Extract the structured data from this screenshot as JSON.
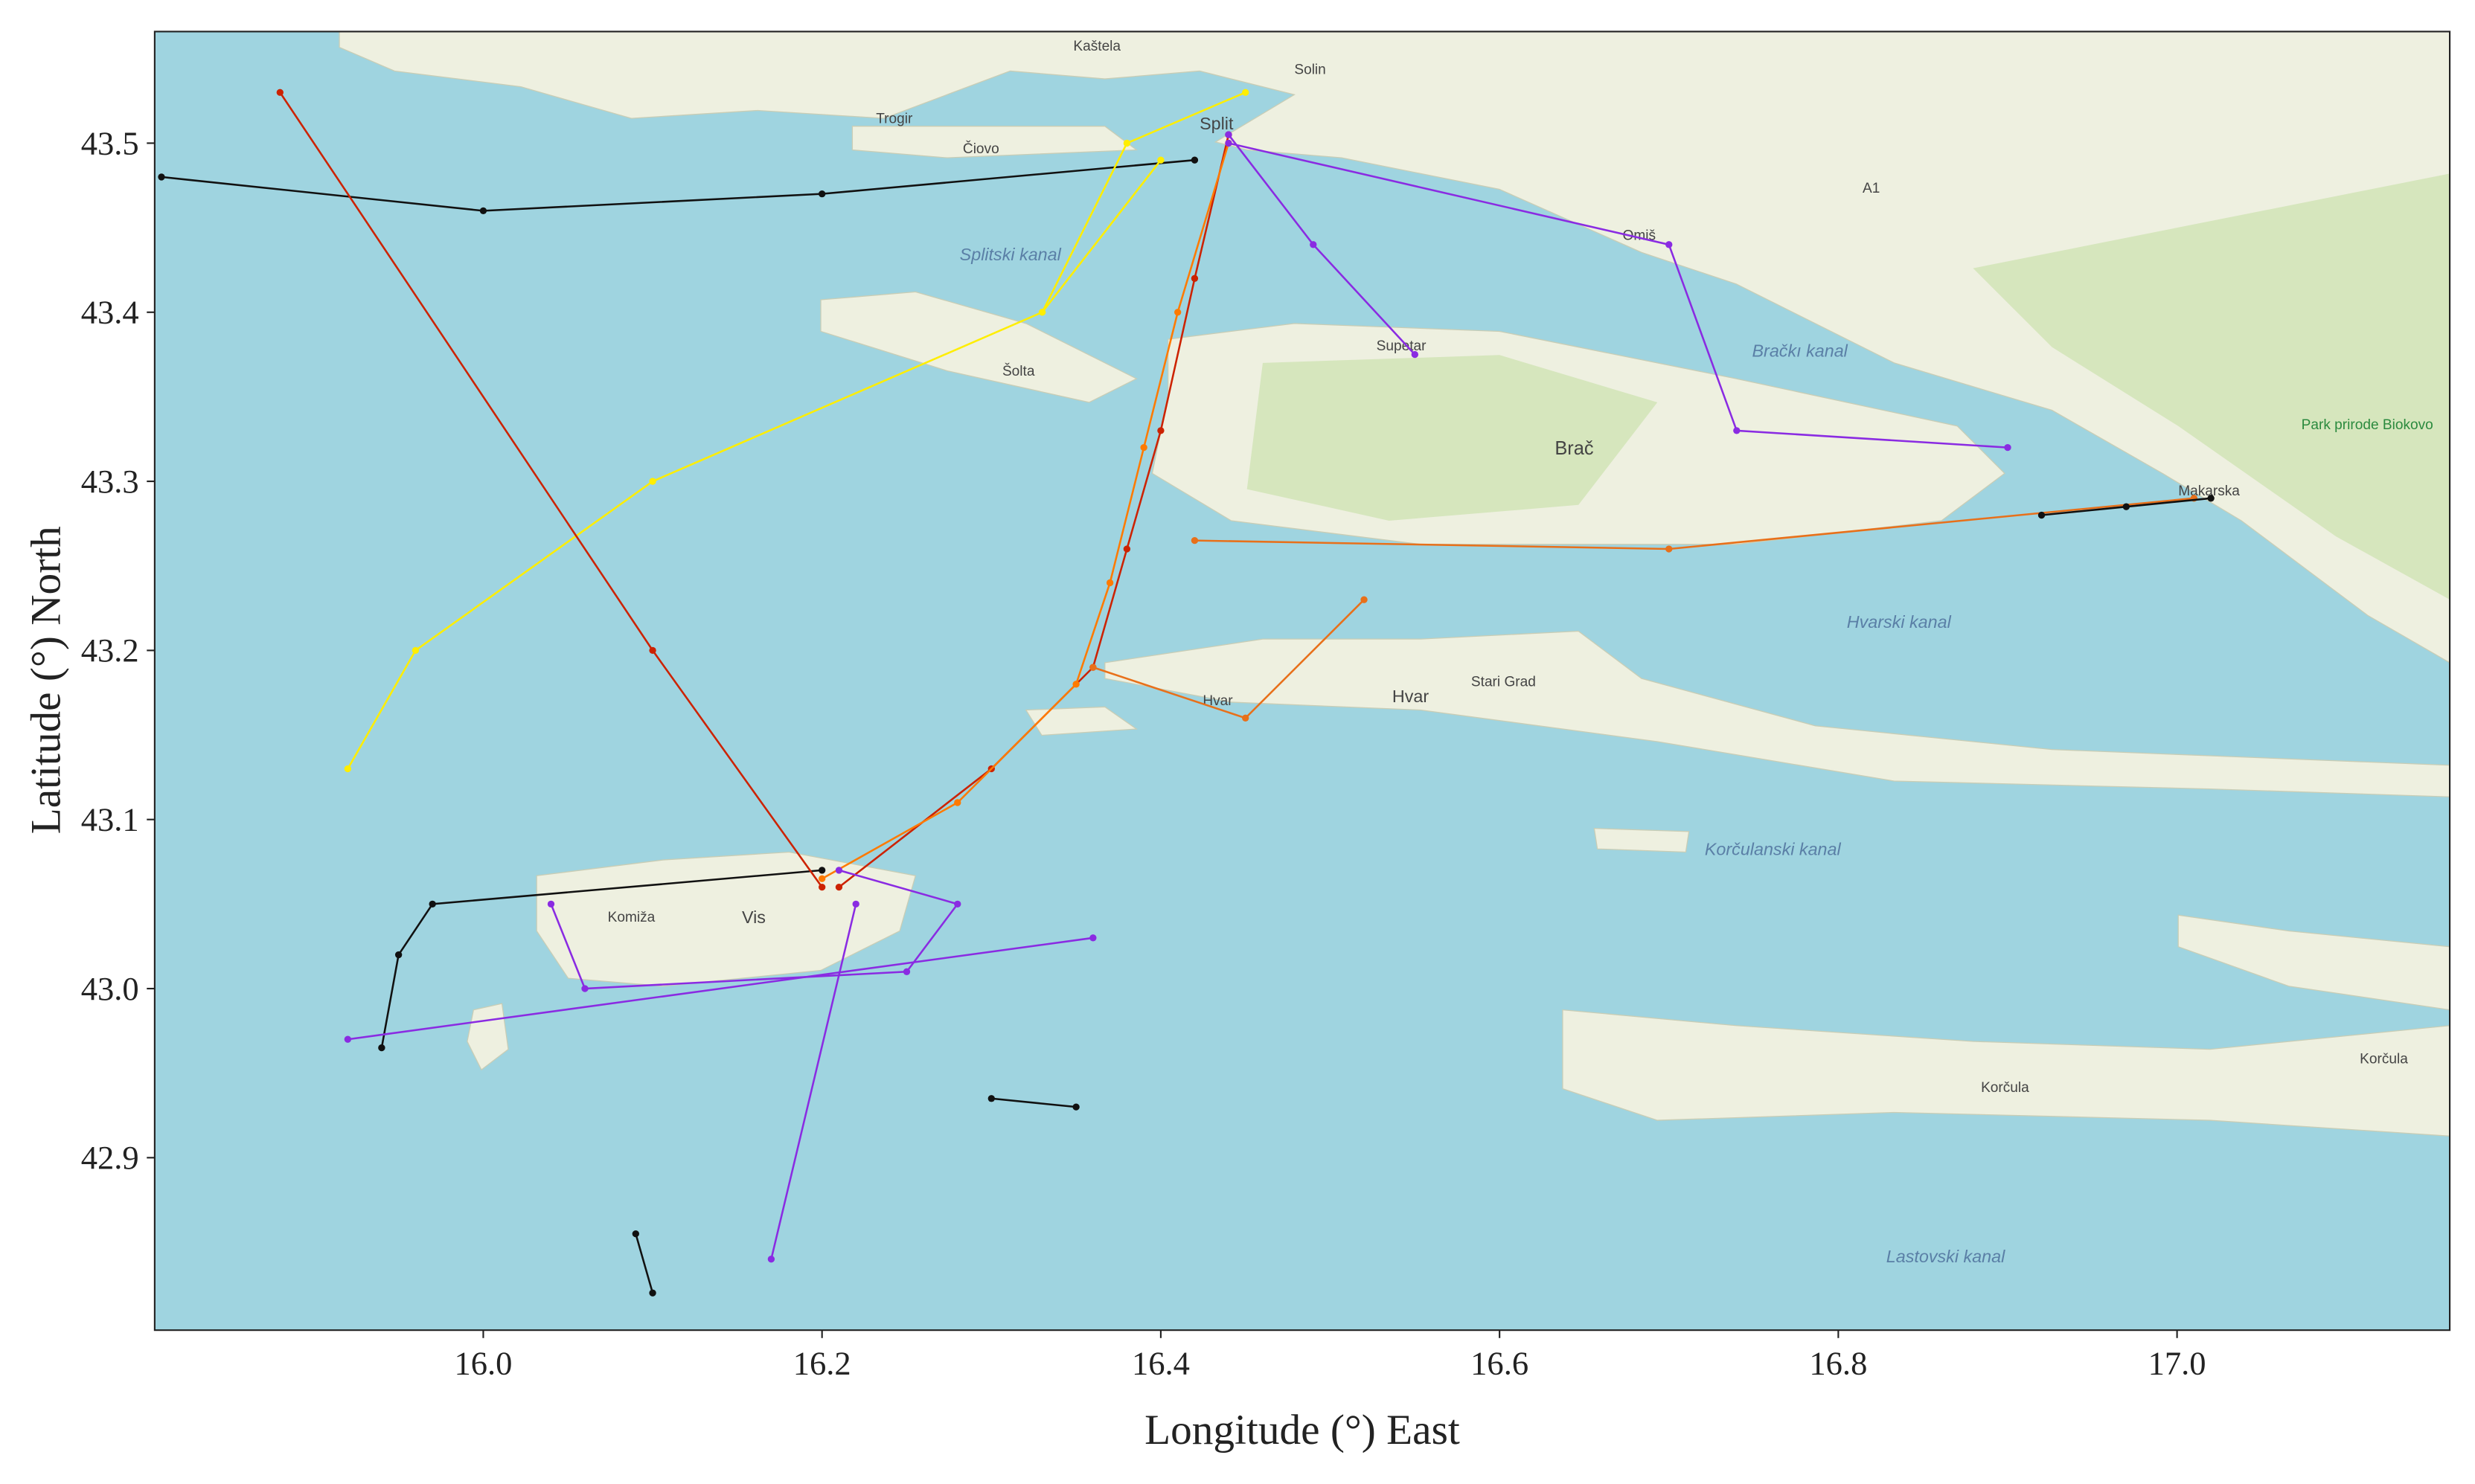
{
  "chart_data": {
    "type": "track-map",
    "xlabel": "Longitude (°) East",
    "ylabel": "Latitude (°) North",
    "xlim": [
      15.806,
      17.161
    ],
    "ylim": [
      42.798,
      43.566
    ],
    "xticks": [
      {
        "value": 16,
        "label": "16.0"
      },
      16.2,
      16.4,
      16.6,
      16.8,
      {
        "value": 17,
        "label": "17.0"
      }
    ],
    "yticks": [
      42.9,
      {
        "value": 43,
        "label": "43.0"
      },
      43.1,
      43.2,
      43.3,
      43.4,
      43.5
    ],
    "annotations": [
      "Kaštela",
      "Solin",
      "Split",
      "Čiovo",
      "Trogir",
      "Splitski kanal",
      "Šolta",
      "Supetar",
      "Brač",
      "Bračkı kanal",
      "Omiš",
      "Park prirode Biokovo",
      "Makarska",
      "Hvarski kanal",
      "Stari Grad",
      "Hvar",
      "Hvar",
      "Vis",
      "Komiža",
      "Korčulanski kanal",
      "Korčula",
      "Korčula",
      "Lastovski kanal",
      "A1"
    ],
    "series": [
      {
        "color": "#cc2200",
        "x": [
          16.44,
          16.42,
          16.4,
          16.38,
          16.36,
          16.3,
          16.21
        ],
        "y": [
          43.505,
          43.42,
          43.33,
          43.26,
          43.19,
          43.13,
          43.06
        ]
      },
      {
        "color": "#ff7a00",
        "x": [
          16.44,
          16.41,
          16.39,
          16.37,
          16.35,
          16.28,
          16.2
        ],
        "y": [
          43.5,
          43.4,
          43.32,
          43.24,
          43.18,
          43.11,
          43.065
        ]
      },
      {
        "color": "#8a2be2",
        "x": [
          16.44,
          16.49,
          16.55
        ],
        "y": [
          43.505,
          43.44,
          43.375
        ]
      },
      {
        "color": "#111111",
        "x": [
          15.81,
          16.0,
          16.2,
          16.42
        ],
        "y": [
          43.48,
          43.46,
          43.47,
          43.49
        ]
      },
      {
        "color": "#ffee00",
        "x": [
          15.92,
          15.96,
          16.1,
          16.33,
          16.4
        ],
        "y": [
          43.13,
          43.2,
          43.3,
          43.4,
          43.49
        ]
      },
      {
        "color": "#8a2be2",
        "x": [
          16.04,
          16.06,
          16.25,
          16.28,
          16.21
        ],
        "y": [
          43.05,
          43.0,
          43.01,
          43.05,
          43.07
        ]
      },
      {
        "color": "#111111",
        "x": [
          16.09,
          16.1
        ],
        "y": [
          42.855,
          42.82
        ]
      },
      {
        "color": "#e8701a",
        "x": [
          16.42,
          16.7,
          17.01
        ],
        "y": [
          43.265,
          43.26,
          43.29
        ]
      },
      {
        "color": "#111111",
        "x": [
          16.92,
          16.97,
          17.02
        ],
        "y": [
          43.28,
          43.285,
          43.29
        ]
      },
      {
        "color": "#8a2be2",
        "x": [
          16.44,
          16.7,
          16.74,
          16.9
        ],
        "y": [
          43.5,
          43.44,
          43.33,
          43.32
        ]
      },
      {
        "color": "#111111",
        "x": [
          15.94,
          15.95,
          15.97,
          16.2
        ],
        "y": [
          42.965,
          43.02,
          43.05,
          43.07
        ]
      },
      {
        "color": "#8a2be2",
        "x": [
          16.17,
          16.22
        ],
        "y": [
          42.84,
          43.05
        ]
      },
      {
        "color": "#cc2200",
        "x": [
          15.88,
          16.1,
          16.2
        ],
        "y": [
          43.53,
          43.2,
          43.06
        ]
      },
      {
        "color": "#ffee00",
        "x": [
          16.33,
          16.38,
          16.45
        ],
        "y": [
          43.4,
          43.5,
          43.53
        ]
      },
      {
        "color": "#8a2be2",
        "x": [
          15.92,
          16.36
        ],
        "y": [
          42.97,
          43.03
        ]
      },
      {
        "color": "#e8701a",
        "x": [
          16.36,
          16.45,
          16.52
        ],
        "y": [
          43.19,
          43.16,
          43.23
        ]
      },
      {
        "color": "#111111",
        "x": [
          16.3,
          16.35
        ],
        "y": [
          42.935,
          42.93
        ]
      }
    ]
  }
}
